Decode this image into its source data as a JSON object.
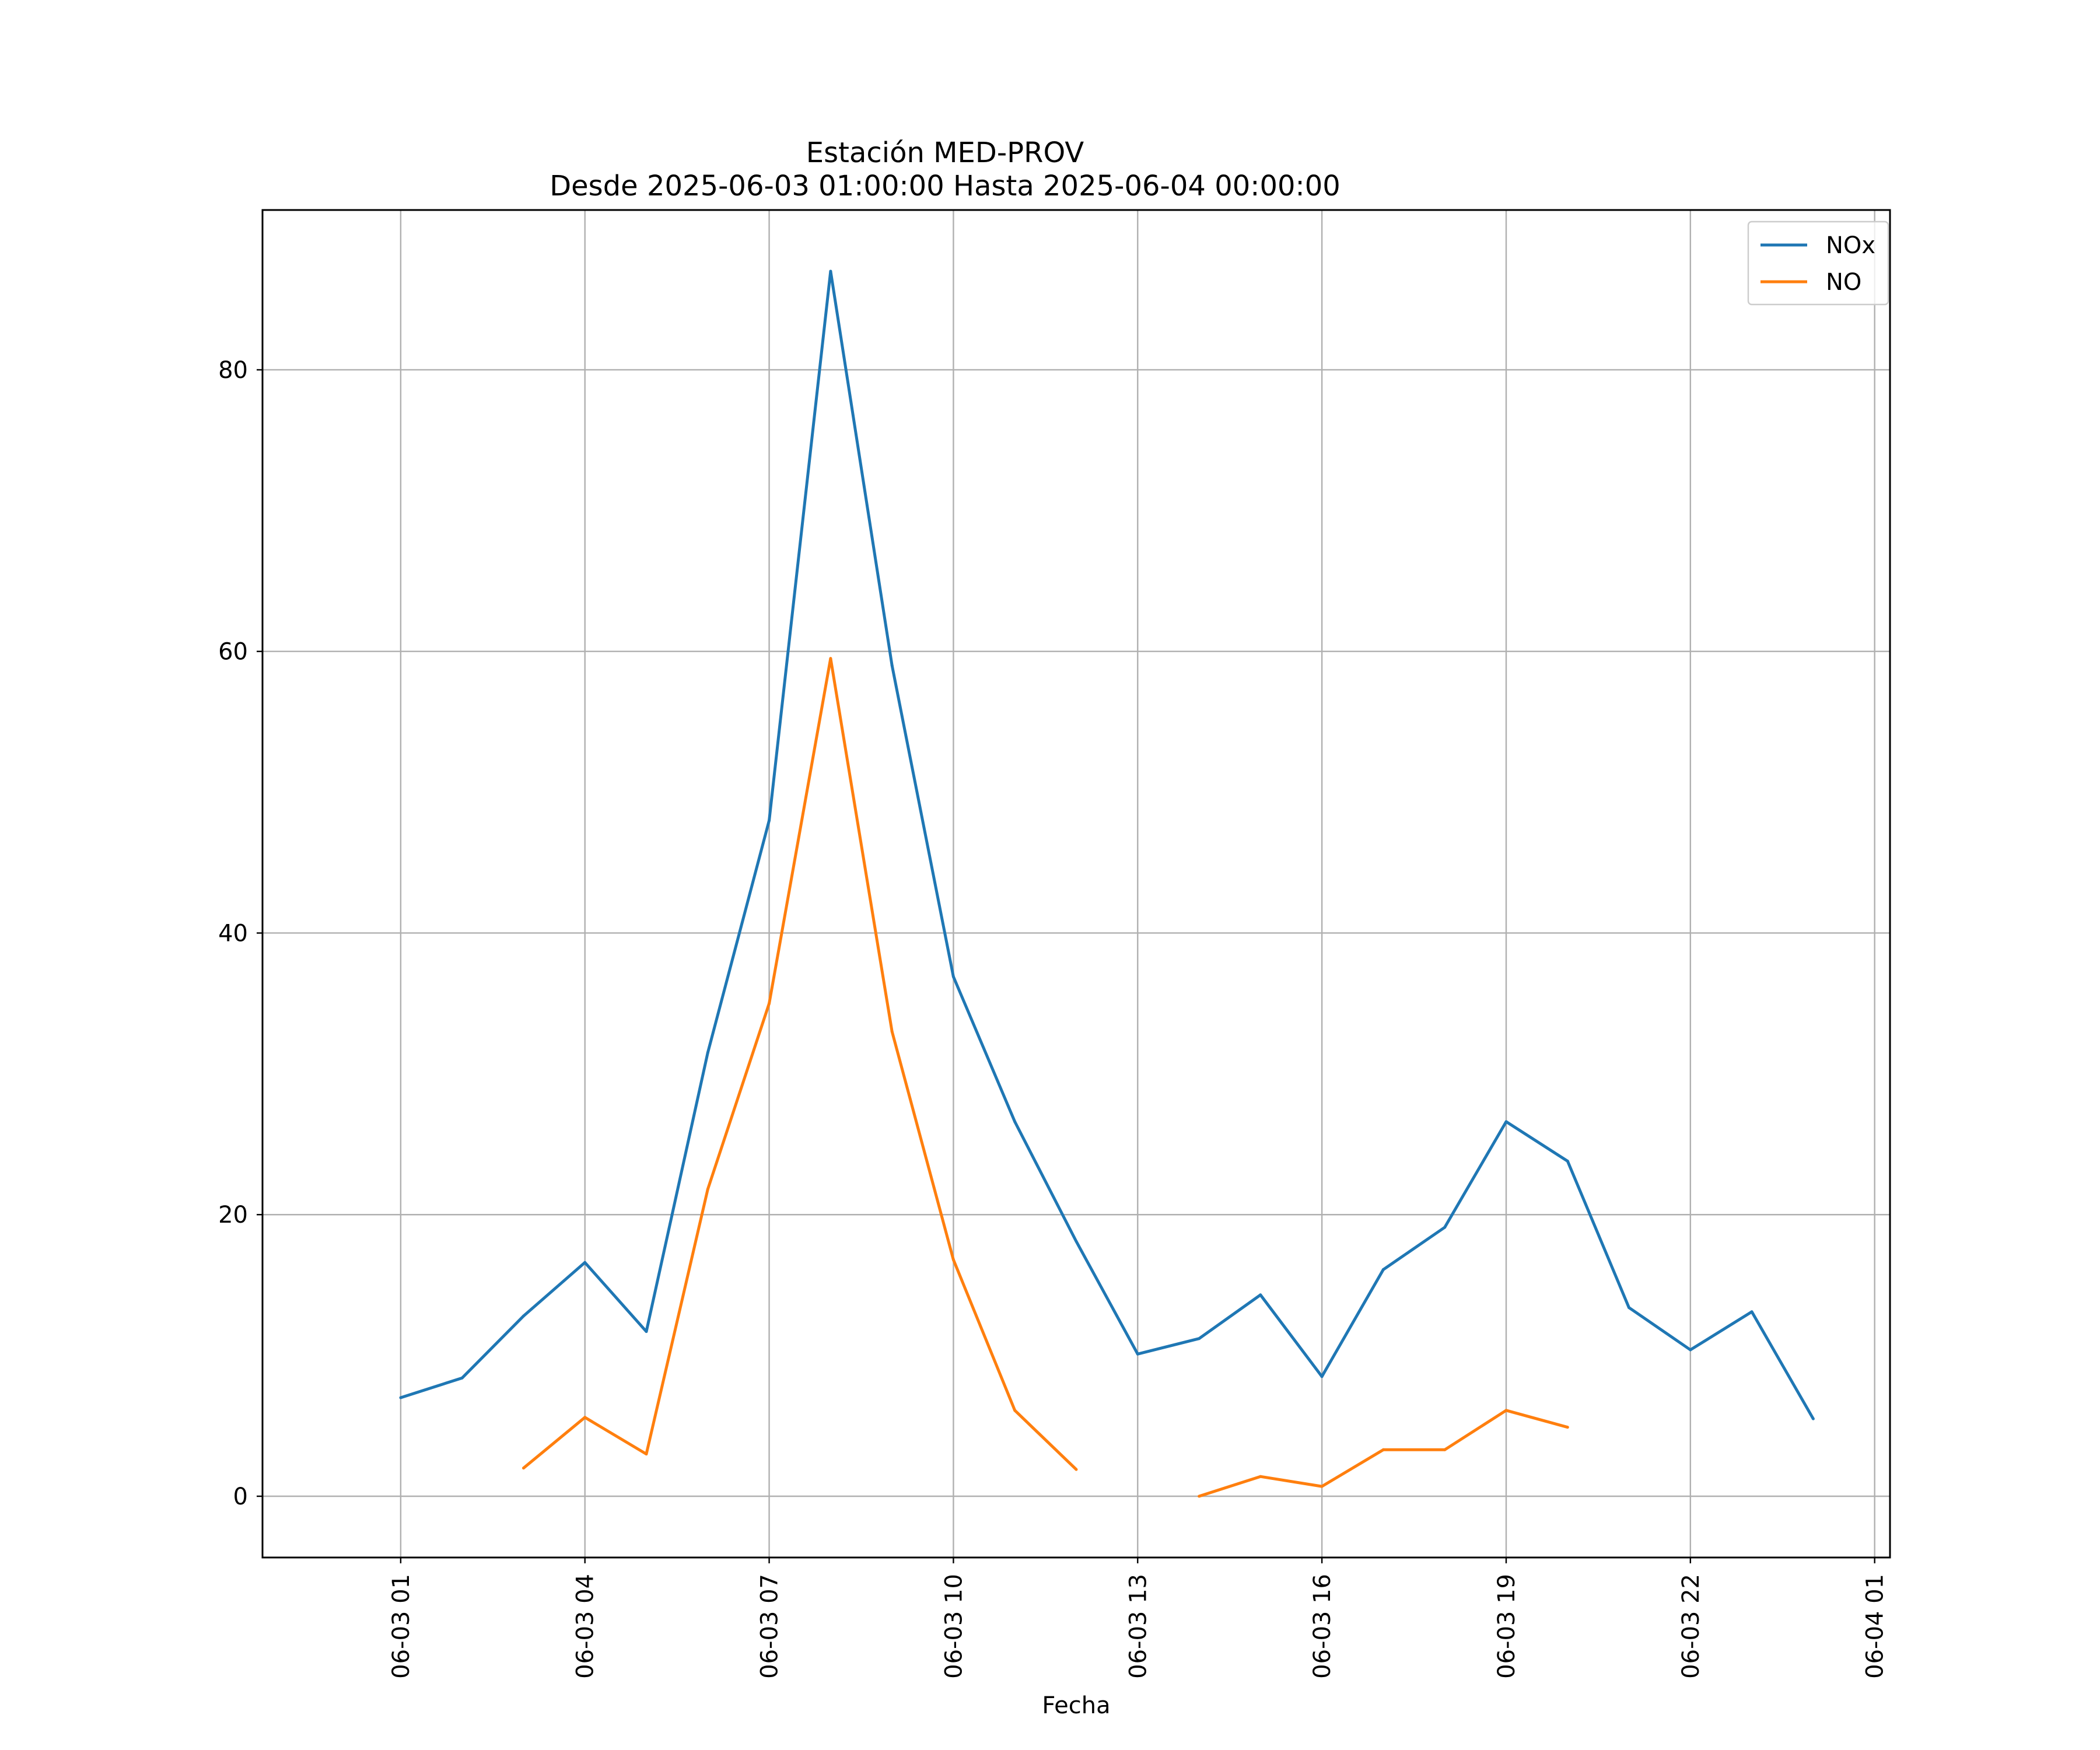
{
  "chart_data": {
    "type": "line",
    "title": "Estación MED-PROV",
    "subtitle": "Desde 2025-06-03 01:00:00 Hasta 2025-06-04 00:00:00",
    "xlabel": "Fecha",
    "ylabel": "",
    "x": [
      "2025-06-03 01:00",
      "2025-06-03 02:00",
      "2025-06-03 03:00",
      "2025-06-03 04:00",
      "2025-06-03 05:00",
      "2025-06-03 06:00",
      "2025-06-03 07:00",
      "2025-06-03 08:00",
      "2025-06-03 09:00",
      "2025-06-03 10:00",
      "2025-06-03 11:00",
      "2025-06-03 12:00",
      "2025-06-03 13:00",
      "2025-06-03 14:00",
      "2025-06-03 15:00",
      "2025-06-03 16:00",
      "2025-06-03 17:00",
      "2025-06-03 18:00",
      "2025-06-03 19:00",
      "2025-06-03 20:00",
      "2025-06-03 21:00",
      "2025-06-03 22:00",
      "2025-06-03 23:00",
      "2025-06-04 00:00"
    ],
    "series": [
      {
        "name": "NOx",
        "color": "#1f77b4",
        "values": [
          7.0,
          8.4,
          12.8,
          16.6,
          11.7,
          31.5,
          48.0,
          87.0,
          59.0,
          36.9,
          26.6,
          18.1,
          10.1,
          11.2,
          14.3,
          8.5,
          16.1,
          19.1,
          26.6,
          23.8,
          13.4,
          10.4,
          13.1,
          5.5
        ]
      },
      {
        "name": "NO",
        "color": "#ff7f0e",
        "values": [
          null,
          null,
          2.0,
          5.6,
          3.0,
          21.8,
          35.0,
          59.5,
          33.0,
          16.8,
          6.1,
          1.9,
          null,
          0.0,
          1.4,
          0.7,
          3.3,
          3.3,
          6.1,
          4.9,
          null,
          null,
          null,
          null
        ]
      }
    ],
    "xticks": [
      "2025-06-03 01:00",
      "2025-06-03 04:00",
      "2025-06-03 07:00",
      "2025-06-03 10:00",
      "2025-06-03 13:00",
      "2025-06-03 16:00",
      "2025-06-03 19:00",
      "2025-06-03 22:00",
      "2025-06-04 01:00"
    ],
    "xtick_labels": [
      "06-03 01",
      "06-03 04",
      "06-03 07",
      "06-03 10",
      "06-03 13",
      "06-03 16",
      "06-03 19",
      "06-03 22",
      "06-04 01"
    ],
    "xlim": [
      "2025-06-02 22:45",
      "2025-06-04 01:15"
    ],
    "yticks": [
      0,
      20,
      40,
      60,
      80
    ],
    "ytick_labels": [
      "0",
      "20",
      "40",
      "60",
      "80"
    ],
    "ylim": [
      -4.35,
      91.35
    ],
    "grid": true,
    "legend_position": "top-right"
  }
}
